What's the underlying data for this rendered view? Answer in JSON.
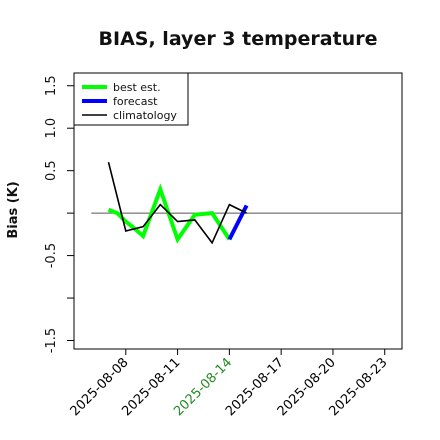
{
  "chart_data": {
    "type": "line",
    "title": "BIAS, layer 3 temperature",
    "ylabel": "Bias (K)",
    "xlabel": "",
    "ylim": [
      -1.6,
      1.65
    ],
    "xlim": [
      "2025-08-05",
      "2025-08-24"
    ],
    "grid": false,
    "legend_position": "top-left",
    "yticks": [
      {
        "value": -1.5,
        "label": "-1.5"
      },
      {
        "value": -1.0,
        "label": ""
      },
      {
        "value": -0.5,
        "label": "-0.5"
      },
      {
        "value": 0.0,
        "label": ""
      },
      {
        "value": 0.5,
        "label": "0.5"
      },
      {
        "value": 1.0,
        "label": "1.0"
      },
      {
        "value": 1.5,
        "label": "1.5"
      }
    ],
    "xticks": [
      {
        "date": "2025-08-08",
        "label": "2025-08-08",
        "color": "#000000"
      },
      {
        "date": "2025-08-11",
        "label": "2025-08-11",
        "color": "#000000"
      },
      {
        "date": "2025-08-14",
        "label": "2025-08-14",
        "color": "#228B22"
      },
      {
        "date": "2025-08-17",
        "label": "2025-08-17",
        "color": "#000000"
      },
      {
        "date": "2025-08-20",
        "label": "2025-08-20",
        "color": "#000000"
      },
      {
        "date": "2025-08-23",
        "label": "2025-08-23",
        "color": "#000000"
      }
    ],
    "reference_line": {
      "y": 0.0,
      "x_start": "2025-08-06",
      "x_end": "2025-08-24",
      "color": "#555555"
    },
    "series": [
      {
        "name": "best est.",
        "color": "#00ff00",
        "points": [
          {
            "x": "2025-08-07",
            "y": 0.04
          },
          {
            "x": "2025-08-07 12:00",
            "y": 0.0
          },
          {
            "x": "2025-08-08",
            "y": -0.1
          },
          {
            "x": "2025-08-08 12:00",
            "y": -0.18
          },
          {
            "x": "2025-08-09",
            "y": -0.27
          },
          {
            "x": "2025-08-10",
            "y": 0.28
          },
          {
            "x": "2025-08-11",
            "y": -0.31
          },
          {
            "x": "2025-08-12",
            "y": -0.02
          },
          {
            "x": "2025-08-13",
            "y": 0.0
          },
          {
            "x": "2025-08-14",
            "y": -0.31
          }
        ]
      },
      {
        "name": "forecast",
        "color": "#0000ff",
        "points": [
          {
            "x": "2025-08-14",
            "y": -0.31
          },
          {
            "x": "2025-08-15",
            "y": 0.09
          }
        ]
      },
      {
        "name": "climatology",
        "color": "#000000",
        "points": [
          {
            "x": "2025-08-07",
            "y": 0.6
          },
          {
            "x": "2025-08-08",
            "y": -0.21
          },
          {
            "x": "2025-08-09",
            "y": -0.16
          },
          {
            "x": "2025-08-10",
            "y": 0.1
          },
          {
            "x": "2025-08-11",
            "y": -0.1
          },
          {
            "x": "2025-08-12",
            "y": -0.08
          },
          {
            "x": "2025-08-13",
            "y": -0.35
          },
          {
            "x": "2025-08-14",
            "y": 0.1
          },
          {
            "x": "2025-08-15",
            "y": 0.0
          }
        ]
      }
    ]
  }
}
